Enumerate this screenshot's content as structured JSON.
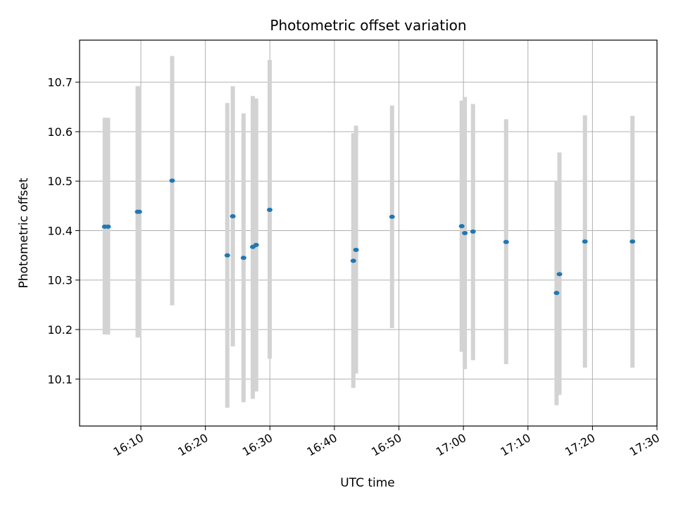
{
  "chart_data": {
    "type": "scatter",
    "title": "Photometric offset variation",
    "xlabel": "UTC time",
    "ylabel": "Photometric offset",
    "x_axis_kind": "time",
    "xlim": [
      "16:00:30",
      "17:30:00"
    ],
    "ylim": [
      10.005,
      10.785
    ],
    "x_ticks": [
      "16:10",
      "16:20",
      "16:30",
      "16:40",
      "16:50",
      "17:00",
      "17:10",
      "17:20",
      "17:30"
    ],
    "y_ticks": [
      10.1,
      10.2,
      10.3,
      10.4,
      10.5,
      10.6,
      10.7
    ],
    "grid": true,
    "colors": {
      "point": "#1f77b4",
      "errorbar": "#d3d3d3",
      "grid": "#b0b0b0"
    },
    "series": [
      {
        "points": [
          {
            "x": "16:04:24",
            "y": 10.408,
            "ylow": 10.19,
            "yhigh": 10.628
          },
          {
            "x": "16:04:55",
            "y": 10.408,
            "ylow": 10.19,
            "yhigh": 10.628
          },
          {
            "x": "16:09:30",
            "y": 10.438,
            "ylow": 10.184,
            "yhigh": 10.692
          },
          {
            "x": "16:09:45",
            "y": 10.438,
            "ylow": 10.184,
            "yhigh": 10.692
          },
          {
            "x": "16:14:51",
            "y": 10.501,
            "ylow": 10.249,
            "yhigh": 10.753
          },
          {
            "x": "16:23:24",
            "y": 10.35,
            "ylow": 10.042,
            "yhigh": 10.658
          },
          {
            "x": "16:24:15",
            "y": 10.429,
            "ylow": 10.166,
            "yhigh": 10.692
          },
          {
            "x": "16:25:55",
            "y": 10.345,
            "ylow": 10.053,
            "yhigh": 10.637
          },
          {
            "x": "16:27:21",
            "y": 10.367,
            "ylow": 10.06,
            "yhigh": 10.672
          },
          {
            "x": "16:27:52",
            "y": 10.371,
            "ylow": 10.075,
            "yhigh": 10.667
          },
          {
            "x": "16:29:58",
            "y": 10.442,
            "ylow": 10.141,
            "yhigh": 10.745
          },
          {
            "x": "16:42:56",
            "y": 10.339,
            "ylow": 10.082,
            "yhigh": 10.597
          },
          {
            "x": "16:43:21",
            "y": 10.361,
            "ylow": 10.111,
            "yhigh": 10.612
          },
          {
            "x": "16:48:56",
            "y": 10.428,
            "ylow": 10.203,
            "yhigh": 10.653
          },
          {
            "x": "16:59:44",
            "y": 10.409,
            "ylow": 10.155,
            "yhigh": 10.663
          },
          {
            "x": "17:00:13",
            "y": 10.395,
            "ylow": 10.12,
            "yhigh": 10.67
          },
          {
            "x": "17:01:29",
            "y": 10.398,
            "ylow": 10.138,
            "yhigh": 10.656
          },
          {
            "x": "17:06:37",
            "y": 10.377,
            "ylow": 10.13,
            "yhigh": 10.625
          },
          {
            "x": "17:14:26",
            "y": 10.274,
            "ylow": 10.047,
            "yhigh": 10.5
          },
          {
            "x": "17:14:53",
            "y": 10.312,
            "ylow": 10.068,
            "yhigh": 10.558
          },
          {
            "x": "17:18:50",
            "y": 10.378,
            "ylow": 10.123,
            "yhigh": 10.633
          },
          {
            "x": "17:26:12",
            "y": 10.378,
            "ylow": 10.123,
            "yhigh": 10.632
          }
        ]
      }
    ]
  }
}
